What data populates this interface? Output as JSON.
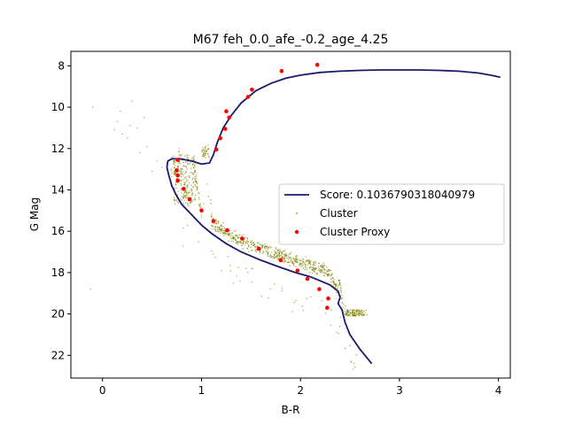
{
  "chart_data": {
    "type": "scatter",
    "title": "M67 feh_0.0_afe_-0.2_age_4.25",
    "xlabel": "B-R",
    "ylabel": "G Mag",
    "xlim": [
      -0.32,
      4.12
    ],
    "ylim": [
      23.1,
      7.3
    ],
    "y_inverted": true,
    "x_ticks": [
      0,
      1,
      2,
      3,
      4
    ],
    "x_tick_labels": [
      "0",
      "1",
      "2",
      "3",
      "4"
    ],
    "y_ticks": [
      8,
      10,
      12,
      14,
      16,
      18,
      20,
      22
    ],
    "y_tick_labels": [
      "8",
      "10",
      "12",
      "14",
      "16",
      "18",
      "20",
      "22"
    ],
    "grid": false,
    "legend_position": "center-right",
    "series": [
      {
        "name": "Score: 0.1036790318040979",
        "kind": "line",
        "color": "#191970",
        "x": [
          2.72,
          2.6,
          2.5,
          2.45,
          2.42,
          2.38,
          2.4,
          2.38,
          2.3,
          2.2,
          2.1,
          1.95,
          1.8,
          1.6,
          1.4,
          1.25,
          1.1,
          1.0,
          0.9,
          0.8,
          0.75,
          0.7,
          0.67,
          0.65,
          0.66,
          0.7,
          0.78,
          0.9,
          1.0,
          1.08,
          1.12,
          1.16,
          1.22,
          1.3,
          1.4,
          1.55,
          1.7,
          1.85,
          2.0,
          2.2,
          2.4,
          2.6,
          2.8,
          3.0,
          3.2,
          3.4,
          3.6,
          3.8,
          3.92,
          4.02
        ],
        "y": [
          22.4,
          21.7,
          21.0,
          20.4,
          19.8,
          19.5,
          19.2,
          18.9,
          18.6,
          18.4,
          18.2,
          18.0,
          17.75,
          17.4,
          17.0,
          16.6,
          16.1,
          15.7,
          15.2,
          14.7,
          14.3,
          13.8,
          13.3,
          12.9,
          12.6,
          12.5,
          12.5,
          12.6,
          12.75,
          12.7,
          12.3,
          11.7,
          11.0,
          10.4,
          9.8,
          9.2,
          8.85,
          8.6,
          8.45,
          8.32,
          8.26,
          8.22,
          8.2,
          8.2,
          8.2,
          8.22,
          8.26,
          8.35,
          8.45,
          8.55
        ]
      },
      {
        "name": "Cluster",
        "kind": "scatter",
        "color": "#808000",
        "generated_from": "dense cloud following the isochrone",
        "x_range": [
          -0.15,
          2.8
        ],
        "y_range": [
          9.6,
          20.1
        ]
      },
      {
        "name": "Cluster Proxy",
        "kind": "scatter",
        "color": "#ff0000",
        "x": [
          2.17,
          1.81,
          1.51,
          1.47,
          1.25,
          1.28,
          1.24,
          1.19,
          1.15,
          0.76,
          0.75,
          0.76,
          0.76,
          0.82,
          0.88,
          1.0,
          1.12,
          1.26,
          1.41,
          1.58,
          1.8,
          1.97,
          2.07,
          2.19,
          2.28,
          2.27
        ],
        "y": [
          7.95,
          8.25,
          9.15,
          9.5,
          10.2,
          10.5,
          11.05,
          11.5,
          12.05,
          12.55,
          13.05,
          13.3,
          13.55,
          13.95,
          14.45,
          15.0,
          15.5,
          15.95,
          16.35,
          16.85,
          17.4,
          17.9,
          18.3,
          18.8,
          19.25,
          19.7
        ]
      }
    ]
  }
}
